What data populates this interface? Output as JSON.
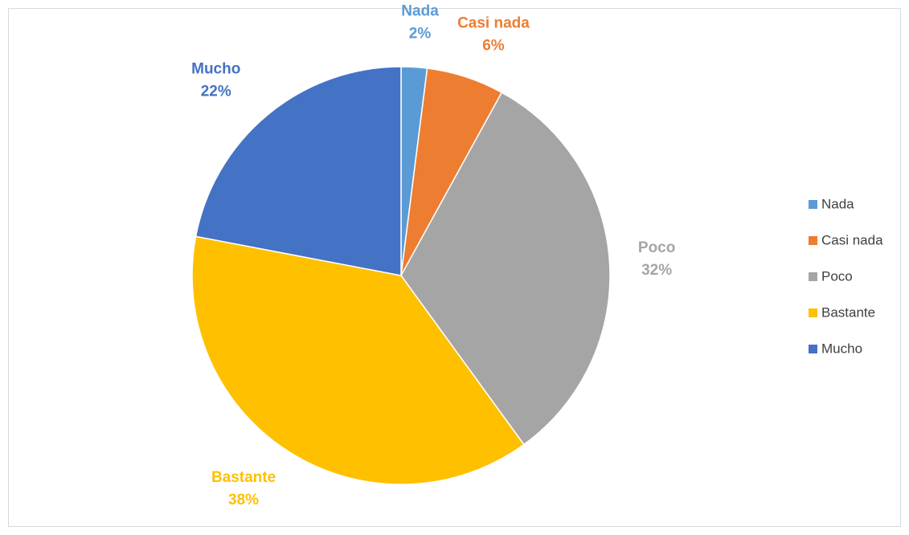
{
  "chart_data": {
    "type": "pie",
    "categories": [
      "Nada",
      "Casi nada",
      "Poco",
      "Bastante",
      "Mucho"
    ],
    "values": [
      2,
      6,
      32,
      38,
      22
    ],
    "value_labels": [
      "2%",
      "6%",
      "32%",
      "38%",
      "22%"
    ],
    "colors": [
      "#5b9bd5",
      "#ed7d31",
      "#a5a5a5",
      "#ffc000",
      "#4472c4"
    ],
    "legend": "right"
  }
}
